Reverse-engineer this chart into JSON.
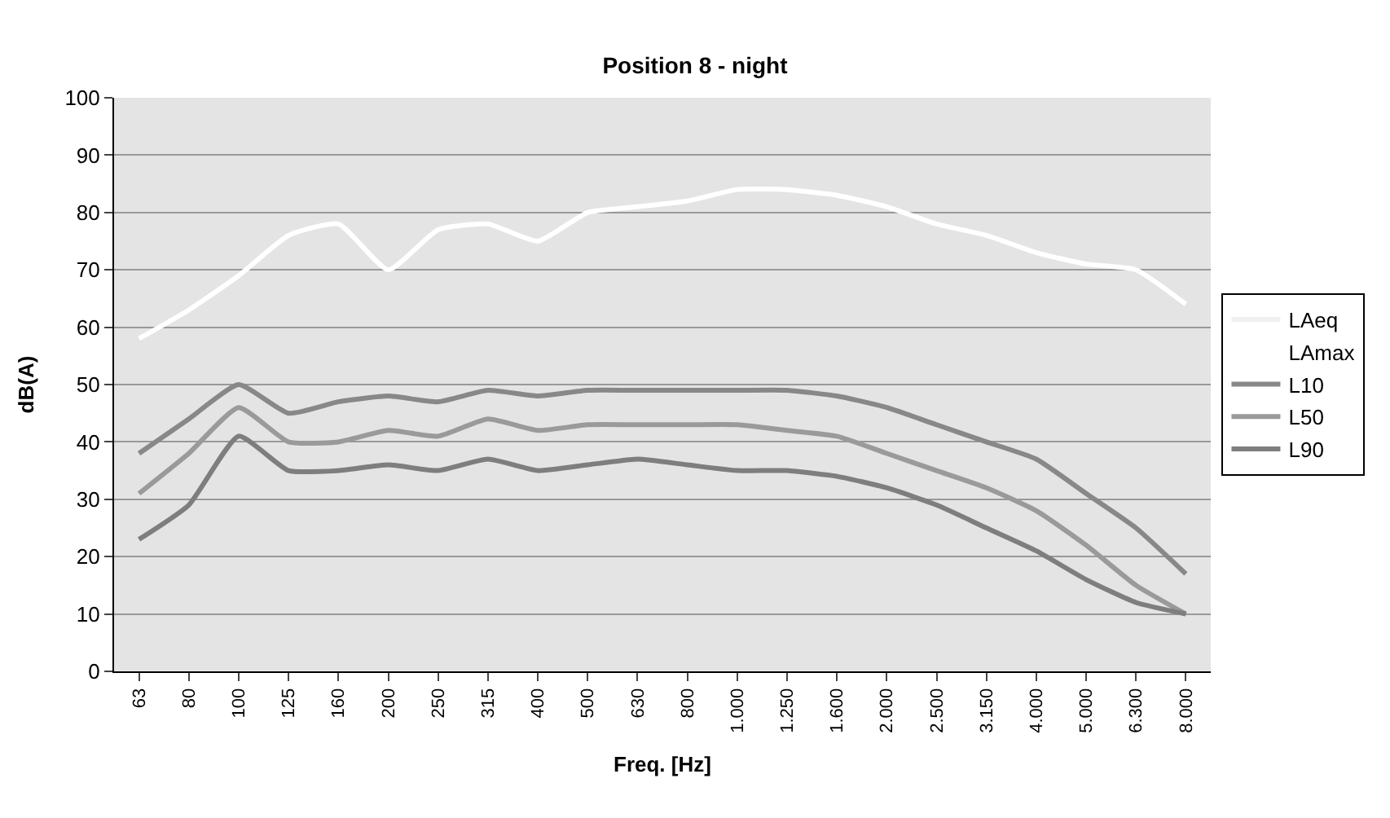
{
  "chart_data": {
    "type": "line",
    "title": "Position 8 - night",
    "xlabel": "Freq. [Hz]",
    "ylabel": "dB(A)",
    "categories": [
      "63",
      "80",
      "100",
      "125",
      "160",
      "200",
      "250",
      "315",
      "400",
      "500",
      "630",
      "800",
      "1.000",
      "1.250",
      "1.600",
      "2.000",
      "2.500",
      "3.150",
      "4.000",
      "5.000",
      "6.300",
      "8.000"
    ],
    "series": [
      {
        "name": "LAeq",
        "color": "#f0f0f0",
        "values": [
          null,
          null,
          null,
          null,
          null,
          null,
          null,
          null,
          null,
          null,
          null,
          null,
          null,
          null,
          null,
          null,
          null,
          null,
          null,
          null,
          null,
          null
        ]
      },
      {
        "name": "LAmax",
        "color": "#ffffff",
        "values": [
          58,
          63,
          69,
          76,
          78,
          70,
          77,
          78,
          75,
          80,
          81,
          82,
          84,
          84,
          83,
          81,
          78,
          76,
          73,
          71,
          70,
          64
        ]
      },
      {
        "name": "L10",
        "color": "#888888",
        "values": [
          38,
          44,
          50,
          45,
          47,
          48,
          47,
          49,
          48,
          49,
          49,
          49,
          49,
          49,
          48,
          46,
          43,
          40,
          37,
          31,
          25,
          17
        ]
      },
      {
        "name": "L50",
        "color": "#9a9a9a",
        "values": [
          31,
          38,
          46,
          40,
          40,
          42,
          41,
          44,
          42,
          43,
          43,
          43,
          43,
          42,
          41,
          38,
          35,
          32,
          28,
          22,
          15,
          10
        ]
      },
      {
        "name": "L90",
        "color": "#7e7e7e",
        "values": [
          23,
          29,
          41,
          35,
          35,
          36,
          35,
          37,
          35,
          36,
          37,
          36,
          35,
          35,
          34,
          32,
          29,
          25,
          21,
          16,
          12,
          10
        ]
      }
    ],
    "ylim": [
      0,
      100
    ],
    "yticks": [
      0,
      10,
      20,
      30,
      40,
      50,
      60,
      70,
      80,
      90,
      100
    ],
    "grid": "y",
    "legend": "right",
    "marker": "none",
    "line_style": "solid"
  }
}
